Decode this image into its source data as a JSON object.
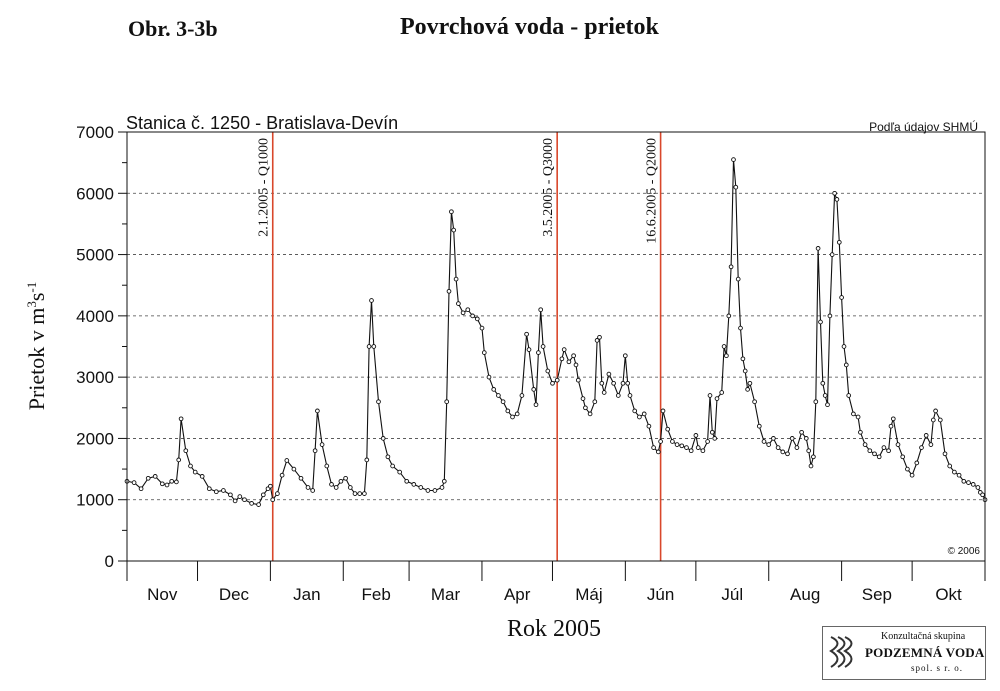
{
  "figure_label": "Obr. 3-3b",
  "figure_title": "Povrchová voda - prietok",
  "logo": {
    "line1": "Konzultačná skupina",
    "line2": "PODZEMNÁ VODA",
    "line3": "spol. s r. o."
  },
  "chart_data": {
    "type": "line",
    "title": "",
    "subtitle": "Stanica č. 1250  -  Bratislava-Devín",
    "source_note": "Podľa údajov SHMÚ",
    "copyright": "© 2006",
    "xlabel": "Rok 2005",
    "ylabel_main": "Prietok v m",
    "ylabel_sup1": "3",
    "ylabel_mid": "s",
    "ylabel_sup2": "-1",
    "ylim": [
      0,
      7000
    ],
    "yticks": [
      0,
      1000,
      2000,
      3000,
      4000,
      5000,
      6000,
      7000
    ],
    "grid": "horizontal dashed",
    "months": [
      "Nov",
      "Dec",
      "Jan",
      "Feb",
      "Mar",
      "Apr",
      "Máj",
      "Jún",
      "Júl",
      "Aug",
      "Sep",
      "Okt"
    ],
    "month_lengths": [
      30,
      31,
      31,
      28,
      31,
      30,
      31,
      30,
      31,
      31,
      30,
      31
    ],
    "x_start": "2004-11-01",
    "events": [
      {
        "day": 62,
        "label": "2.1.2005 - Q1000"
      },
      {
        "day": 183,
        "label": "3.5.2005 - Q3000"
      },
      {
        "day": 227,
        "label": "16.6.2005 - Q2000"
      }
    ],
    "series": [
      {
        "color": "#111111",
        "points": [
          [
            0,
            1300
          ],
          [
            3,
            1280
          ],
          [
            6,
            1180
          ],
          [
            9,
            1350
          ],
          [
            12,
            1380
          ],
          [
            15,
            1260
          ],
          [
            17,
            1240
          ],
          [
            19,
            1300
          ],
          [
            21,
            1290
          ],
          [
            22,
            1650
          ],
          [
            23,
            2320
          ],
          [
            25,
            1800
          ],
          [
            27,
            1550
          ],
          [
            29,
            1450
          ],
          [
            32,
            1380
          ],
          [
            35,
            1180
          ],
          [
            38,
            1130
          ],
          [
            41,
            1150
          ],
          [
            44,
            1080
          ],
          [
            46,
            980
          ],
          [
            48,
            1050
          ],
          [
            50,
            1000
          ],
          [
            53,
            940
          ],
          [
            56,
            920
          ],
          [
            58,
            1080
          ],
          [
            60,
            1180
          ],
          [
            61,
            1220
          ],
          [
            62,
            1000
          ],
          [
            64,
            1100
          ],
          [
            66,
            1400
          ],
          [
            68,
            1640
          ],
          [
            71,
            1500
          ],
          [
            74,
            1350
          ],
          [
            77,
            1200
          ],
          [
            79,
            1150
          ],
          [
            80,
            1800
          ],
          [
            81,
            2450
          ],
          [
            83,
            1900
          ],
          [
            85,
            1550
          ],
          [
            87,
            1250
          ],
          [
            89,
            1200
          ],
          [
            91,
            1300
          ],
          [
            93,
            1350
          ],
          [
            95,
            1200
          ],
          [
            97,
            1100
          ],
          [
            99,
            1100
          ],
          [
            101,
            1100
          ],
          [
            102,
            1650
          ],
          [
            103,
            3500
          ],
          [
            104,
            4250
          ],
          [
            105,
            3500
          ],
          [
            107,
            2600
          ],
          [
            109,
            2000
          ],
          [
            111,
            1700
          ],
          [
            113,
            1550
          ],
          [
            116,
            1450
          ],
          [
            119,
            1300
          ],
          [
            122,
            1250
          ],
          [
            125,
            1200
          ],
          [
            128,
            1150
          ],
          [
            131,
            1150
          ],
          [
            134,
            1200
          ],
          [
            135,
            1300
          ],
          [
            136,
            2600
          ],
          [
            137,
            4400
          ],
          [
            138,
            5700
          ],
          [
            139,
            5400
          ],
          [
            140,
            4600
          ],
          [
            141,
            4200
          ],
          [
            143,
            4050
          ],
          [
            145,
            4100
          ],
          [
            147,
            4000
          ],
          [
            149,
            3950
          ],
          [
            151,
            3800
          ],
          [
            152,
            3400
          ],
          [
            154,
            3000
          ],
          [
            156,
            2800
          ],
          [
            158,
            2700
          ],
          [
            160,
            2600
          ],
          [
            162,
            2450
          ],
          [
            164,
            2350
          ],
          [
            166,
            2400
          ],
          [
            168,
            2700
          ],
          [
            170,
            3700
          ],
          [
            171,
            3450
          ],
          [
            173,
            2800
          ],
          [
            174,
            2550
          ],
          [
            175,
            3400
          ],
          [
            176,
            4100
          ],
          [
            177,
            3500
          ],
          [
            179,
            3100
          ],
          [
            181,
            2900
          ],
          [
            183,
            2950
          ],
          [
            185,
            3300
          ],
          [
            186,
            3450
          ],
          [
            188,
            3250
          ],
          [
            190,
            3350
          ],
          [
            191,
            3200
          ],
          [
            192,
            2950
          ],
          [
            194,
            2650
          ],
          [
            195,
            2500
          ],
          [
            197,
            2400
          ],
          [
            199,
            2600
          ],
          [
            200,
            3600
          ],
          [
            201,
            3650
          ],
          [
            202,
            2900
          ],
          [
            203,
            2750
          ],
          [
            205,
            3050
          ],
          [
            207,
            2900
          ],
          [
            209,
            2700
          ],
          [
            211,
            2900
          ],
          [
            212,
            3350
          ],
          [
            213,
            2900
          ],
          [
            214,
            2700
          ],
          [
            216,
            2450
          ],
          [
            218,
            2350
          ],
          [
            220,
            2400
          ],
          [
            222,
            2200
          ],
          [
            224,
            1850
          ],
          [
            226,
            1780
          ],
          [
            227,
            1950
          ],
          [
            228,
            2450
          ],
          [
            230,
            2150
          ],
          [
            232,
            1950
          ],
          [
            234,
            1900
          ],
          [
            236,
            1880
          ],
          [
            238,
            1850
          ],
          [
            240,
            1800
          ],
          [
            242,
            2050
          ],
          [
            243,
            1850
          ],
          [
            245,
            1800
          ],
          [
            247,
            1950
          ],
          [
            248,
            2700
          ],
          [
            249,
            2100
          ],
          [
            250,
            2000
          ],
          [
            251,
            2650
          ],
          [
            253,
            2750
          ],
          [
            254,
            3500
          ],
          [
            255,
            3350
          ],
          [
            256,
            4000
          ],
          [
            257,
            4800
          ],
          [
            258,
            6550
          ],
          [
            259,
            6100
          ],
          [
            260,
            4600
          ],
          [
            261,
            3800
          ],
          [
            262,
            3300
          ],
          [
            263,
            3100
          ],
          [
            264,
            2800
          ],
          [
            265,
            2900
          ],
          [
            267,
            2600
          ],
          [
            269,
            2200
          ],
          [
            271,
            1950
          ],
          [
            273,
            1900
          ],
          [
            275,
            2000
          ],
          [
            277,
            1850
          ],
          [
            279,
            1780
          ],
          [
            281,
            1750
          ],
          [
            283,
            2000
          ],
          [
            285,
            1850
          ],
          [
            287,
            2100
          ],
          [
            289,
            2000
          ],
          [
            290,
            1800
          ],
          [
            291,
            1550
          ],
          [
            292,
            1700
          ],
          [
            293,
            2600
          ],
          [
            294,
            5100
          ],
          [
            295,
            3900
          ],
          [
            296,
            2900
          ],
          [
            297,
            2700
          ],
          [
            298,
            2550
          ],
          [
            299,
            4000
          ],
          [
            300,
            5000
          ],
          [
            301,
            6000
          ],
          [
            302,
            5900
          ],
          [
            303,
            5200
          ],
          [
            304,
            4300
          ],
          [
            305,
            3500
          ],
          [
            306,
            3200
          ],
          [
            307,
            2700
          ],
          [
            309,
            2400
          ],
          [
            311,
            2350
          ],
          [
            312,
            2100
          ],
          [
            314,
            1900
          ],
          [
            316,
            1800
          ],
          [
            318,
            1750
          ],
          [
            320,
            1700
          ],
          [
            322,
            1850
          ],
          [
            324,
            1800
          ],
          [
            325,
            2200
          ],
          [
            326,
            2320
          ],
          [
            328,
            1900
          ],
          [
            330,
            1700
          ],
          [
            332,
            1500
          ],
          [
            334,
            1400
          ],
          [
            336,
            1600
          ],
          [
            338,
            1850
          ],
          [
            340,
            2050
          ],
          [
            342,
            1900
          ],
          [
            343,
            2300
          ],
          [
            344,
            2450
          ],
          [
            346,
            2300
          ],
          [
            348,
            1750
          ],
          [
            350,
            1550
          ],
          [
            352,
            1450
          ],
          [
            354,
            1400
          ],
          [
            356,
            1300
          ],
          [
            358,
            1280
          ],
          [
            360,
            1250
          ],
          [
            362,
            1200
          ],
          [
            363,
            1120
          ],
          [
            364,
            1080
          ],
          [
            365,
            1000
          ]
        ]
      }
    ]
  }
}
